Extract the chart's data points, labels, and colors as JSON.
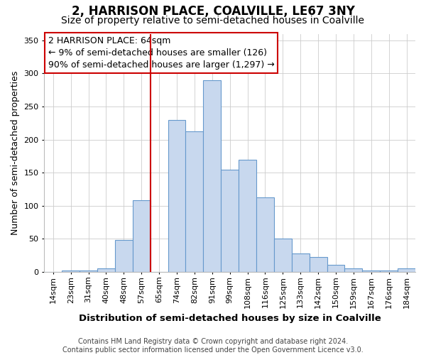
{
  "title": "2, HARRISON PLACE, COALVILLE, LE67 3NY",
  "subtitle": "Size of property relative to semi-detached houses in Coalville",
  "xlabel": "Distribution of semi-detached houses by size in Coalville",
  "ylabel": "Number of semi-detached properties",
  "footer_line1": "Contains HM Land Registry data © Crown copyright and database right 2024.",
  "footer_line2": "Contains public sector information licensed under the Open Government Licence v3.0.",
  "categories": [
    "14sqm",
    "23sqm",
    "31sqm",
    "40sqm",
    "48sqm",
    "57sqm",
    "65sqm",
    "74sqm",
    "82sqm",
    "91sqm",
    "99sqm",
    "108sqm",
    "116sqm",
    "125sqm",
    "133sqm",
    "142sqm",
    "150sqm",
    "159sqm",
    "167sqm",
    "176sqm",
    "184sqm"
  ],
  "values": [
    0,
    2,
    2,
    5,
    48,
    108,
    0,
    230,
    213,
    290,
    155,
    170,
    113,
    50,
    28,
    23,
    11,
    5,
    2,
    2,
    5
  ],
  "bar_color": "#c8d8ee",
  "bar_edge_color": "#6699cc",
  "grid_color": "#cccccc",
  "annotation_text_line1": "2 HARRISON PLACE: 64sqm",
  "annotation_text_line2": "← 9% of semi-detached houses are smaller (126)",
  "annotation_text_line3": "90% of semi-detached houses are larger (1,297) →",
  "vline_color": "#cc0000",
  "annotation_box_edgecolor": "#cc0000",
  "ylim": [
    0,
    360
  ],
  "yticks": [
    0,
    50,
    100,
    150,
    200,
    250,
    300,
    350
  ],
  "background_color": "#ffffff",
  "title_fontsize": 12,
  "subtitle_fontsize": 10,
  "annotation_fontsize": 9,
  "axis_label_fontsize": 9,
  "xlabel_fontsize": 9.5,
  "tick_fontsize": 8,
  "footer_fontsize": 7
}
